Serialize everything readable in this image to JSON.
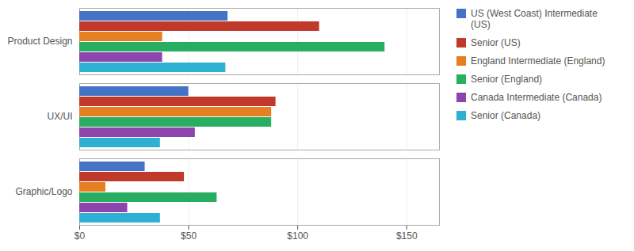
{
  "chart_data": {
    "type": "bar",
    "orientation": "horizontal",
    "categories": [
      "Graphic/Logo",
      "UX/UI",
      "Product Design"
    ],
    "series": [
      {
        "name": "US (West Coast) Intermediate\n(US)",
        "color": "#4472C4",
        "values": [
          30,
          50,
          68
        ]
      },
      {
        "name": "Senior (US)",
        "color": "#C0392B",
        "values": [
          48,
          90,
          110
        ]
      },
      {
        "name": "England Intermediate (England)",
        "color": "#E67E22",
        "values": [
          12,
          88,
          38
        ]
      },
      {
        "name": "Senior (England)",
        "color": "#27AE60",
        "values": [
          63,
          88,
          140
        ]
      },
      {
        "name": "Canada Intermediate (Canada)",
        "color": "#8E44AD",
        "values": [
          22,
          53,
          38
        ]
      },
      {
        "name": "Senior (Canada)",
        "color": "#2EAFD4",
        "values": [
          37,
          37,
          67
        ]
      }
    ],
    "xlim": [
      0,
      165
    ],
    "xticks": [
      {
        "value": 0,
        "label": "$0"
      },
      {
        "value": 50,
        "label": "$50"
      },
      {
        "value": 100,
        "label": "$100"
      },
      {
        "value": 150,
        "label": "$150"
      }
    ],
    "grid": true,
    "legend": "right"
  }
}
